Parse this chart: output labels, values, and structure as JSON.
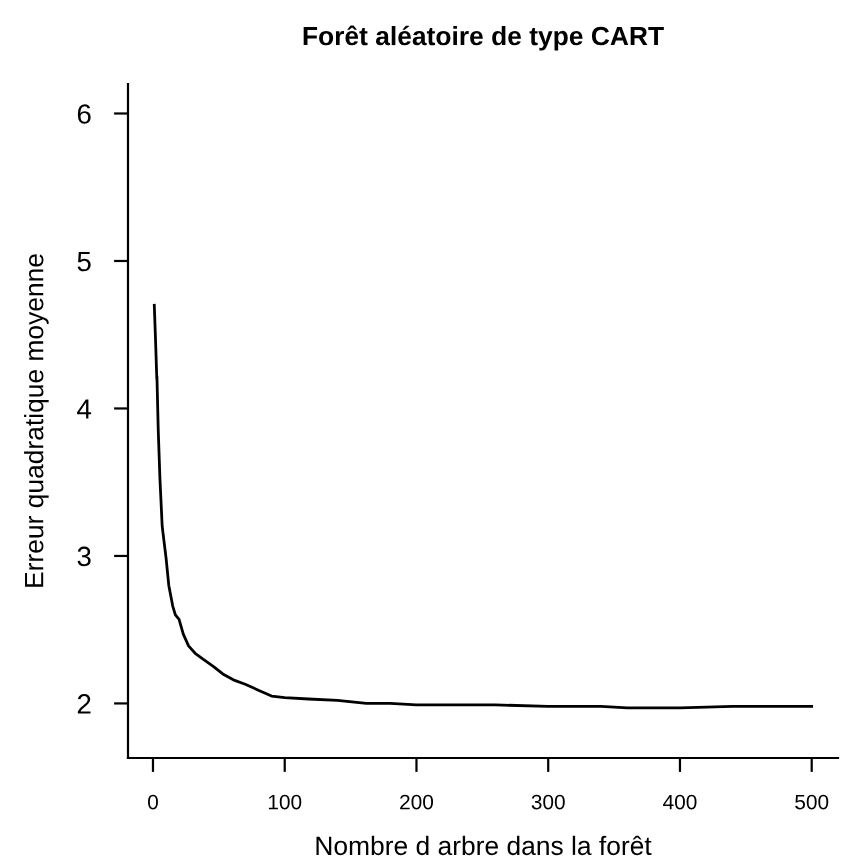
{
  "chart_data": {
    "type": "line",
    "title": "Forêt aléatoire de type CART",
    "xlabel": "Nombre d arbre dans la forêt",
    "ylabel": "Erreur quadratique moyenne",
    "x": [
      1,
      2,
      2.9,
      3,
      4,
      5.3,
      7,
      10,
      12,
      15,
      17,
      19.8,
      23,
      27,
      32,
      38,
      46,
      53,
      61,
      70,
      80,
      90,
      100,
      118,
      140,
      162,
      180,
      200,
      230,
      260,
      300,
      340,
      360,
      400,
      440,
      470,
      500
    ],
    "values": [
      4.7,
      4.45,
      4.2,
      4.22,
      3.85,
      3.52,
      3.2,
      2.98,
      2.8,
      2.66,
      2.6,
      2.57,
      2.47,
      2.39,
      2.34,
      2.3,
      2.25,
      2.2,
      2.16,
      2.13,
      2.09,
      2.05,
      2.04,
      2.03,
      2.02,
      2.0,
      2.0,
      1.99,
      1.99,
      1.99,
      1.98,
      1.98,
      1.97,
      1.97,
      1.98,
      1.98,
      1.98
    ],
    "color": "#000000",
    "xlim": [
      -18.96,
      519.96
    ],
    "ylim": [
      1.63,
      6.2
    ],
    "xticks": [
      0,
      100,
      200,
      300,
      400,
      500
    ],
    "yticks": [
      2,
      3,
      4,
      5,
      6
    ],
    "grid": false,
    "legend": false
  }
}
